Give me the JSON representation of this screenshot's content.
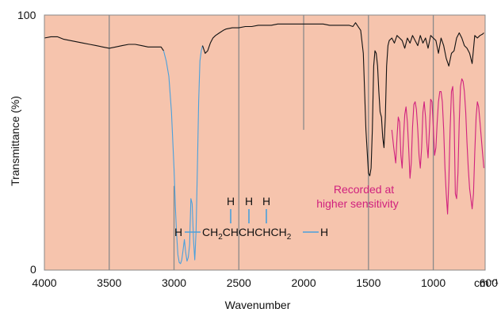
{
  "chart_data": {
    "type": "line",
    "title": "",
    "xlabel": "Wavenumber",
    "ylabel": "Transmittance (%)",
    "x_unit_label": "cm⁻¹",
    "xlim": [
      4000,
      600
    ],
    "ylim": [
      0,
      100
    ],
    "x_ticks": [
      4000,
      3500,
      3000,
      2500,
      2000,
      1500,
      1000,
      600
    ],
    "x_tick_labels": [
      "4000",
      "3500",
      "3000",
      "2500",
      "2000",
      "1500",
      "1000",
      "600"
    ],
    "y_tick_labels": [
      "0",
      "100"
    ],
    "grid_lines_x": [
      3500,
      3000,
      2500,
      2000,
      1500,
      1000
    ],
    "grid_partial": {
      "2000": [
        55,
        100
      ],
      "3000": [
        0,
        33
      ]
    },
    "colors": {
      "background": "#f6c4ad",
      "main_line": "#111111",
      "ch_region_line": "#4aa0dc",
      "sensitive_line": "#d0217e",
      "molecule_bonds": "#4aa0dc",
      "grid": "#8a8a8a"
    },
    "series": [
      {
        "x": [
          4000,
          3950,
          3900,
          3850,
          3800,
          3750,
          3700,
          3650,
          3600,
          3550,
          3500,
          3450,
          3400,
          3350,
          3300,
          3250,
          3200,
          3150,
          3100,
          3080
        ],
        "y": [
          91,
          91.5,
          91.5,
          90.5,
          90,
          89.5,
          89,
          88.5,
          88,
          87.5,
          87,
          87.5,
          88,
          88.5,
          88.5,
          88,
          87.5,
          87.5,
          87.5,
          86
        ]
      },
      {
        "x": [
          3080,
          3060,
          3040,
          3020,
          3000,
          2990,
          2980,
          2970,
          2960,
          2950,
          2940,
          2930,
          2920,
          2910,
          2900,
          2890,
          2880,
          2870,
          2860,
          2850,
          2840,
          2830,
          2820,
          2810,
          2800,
          2790,
          2780
        ],
        "y": [
          86,
          82,
          76,
          62,
          40,
          25,
          14,
          6,
          3,
          2.5,
          4,
          8,
          12,
          7,
          3.5,
          5,
          10,
          28,
          26,
          12,
          4,
          15,
          40,
          66,
          82,
          86,
          88
        ]
      },
      {
        "x": [
          2780,
          2760,
          2740,
          2720,
          2700,
          2680,
          2650,
          2620,
          2600,
          2550,
          2500,
          2450,
          2400,
          2350,
          2300,
          2250,
          2200,
          2150,
          2100,
          2050,
          2000,
          1950,
          1900,
          1850,
          1800,
          1750,
          1700,
          1650,
          1620,
          1600,
          1580,
          1560,
          1540,
          1520,
          1500,
          1490,
          1480,
          1470,
          1460,
          1450,
          1440,
          1430,
          1420,
          1410,
          1400,
          1390,
          1380,
          1370,
          1360,
          1350,
          1340,
          1320,
          1300,
          1280,
          1260,
          1240,
          1220,
          1200,
          1180,
          1160,
          1140,
          1120,
          1100,
          1080,
          1060,
          1040,
          1020,
          1000,
          980,
          960,
          940,
          920,
          900,
          880,
          860,
          840,
          820,
          800,
          780,
          760,
          740,
          720,
          700,
          680,
          660,
          640,
          620,
          610
        ],
        "y": [
          88,
          85,
          86,
          89,
          91,
          92,
          93,
          94,
          94.5,
          95,
          95,
          95.5,
          95.5,
          96,
          96,
          96,
          96.5,
          96.5,
          96.5,
          96.5,
          96.5,
          96.5,
          96.5,
          96.5,
          96,
          96,
          96,
          96,
          95.5,
          97,
          95.5,
          94,
          85,
          55,
          38,
          37,
          40,
          55,
          80,
          86,
          85,
          80,
          70,
          62,
          60,
          52,
          48,
          60,
          80,
          88,
          90,
          91,
          89,
          92,
          91,
          90,
          87,
          91,
          89,
          92,
          90,
          88,
          92,
          89,
          91,
          87,
          92,
          91,
          90,
          85,
          91,
          88,
          83,
          80,
          85,
          86,
          91,
          93,
          91,
          88,
          87,
          85,
          81,
          92,
          91,
          92,
          92.5,
          93
        ]
      },
      {
        "x": [
          1320,
          1305,
          1290,
          1280,
          1270,
          1260,
          1250,
          1240,
          1230,
          1220,
          1210,
          1200,
          1190,
          1180,
          1170,
          1160,
          1150,
          1140,
          1130,
          1120,
          1110,
          1100,
          1090,
          1080,
          1070,
          1060,
          1050,
          1040,
          1030,
          1020,
          1010,
          1000,
          990,
          980,
          970,
          960,
          950,
          940,
          930,
          920,
          910,
          900,
          890,
          880,
          870,
          860,
          850,
          840,
          830,
          820,
          810,
          800,
          790,
          780,
          770,
          760,
          750,
          740,
          730,
          720,
          710,
          700,
          690,
          680,
          670,
          660,
          650,
          640,
          630,
          620,
          610
        ],
        "y": [
          55,
          48,
          42,
          52,
          60,
          58,
          45,
          40,
          52,
          61,
          64,
          58,
          48,
          36,
          42,
          56,
          65,
          66,
          63,
          55,
          45,
          40,
          48,
          62,
          66,
          60,
          50,
          44,
          55,
          67,
          66,
          56,
          45,
          48,
          58,
          66,
          70,
          70,
          66,
          55,
          40,
          30,
          22,
          35,
          55,
          70,
          72,
          60,
          30,
          28,
          38,
          58,
          72,
          75,
          74,
          70,
          62,
          50,
          40,
          32,
          28,
          24,
          30,
          46,
          60,
          66,
          64,
          58,
          52,
          46,
          40
        ]
      }
    ],
    "molecule": {
      "h_labels": [
        "H",
        "H",
        "H"
      ],
      "chain_left": "H",
      "chain_text": "CH",
      "chain_sub": "2",
      "chain_mid": "CHCHCHCH",
      "chain_right": "H"
    },
    "annotation": {
      "line1": "Recorded at",
      "line2": "higher sensitivity"
    }
  }
}
